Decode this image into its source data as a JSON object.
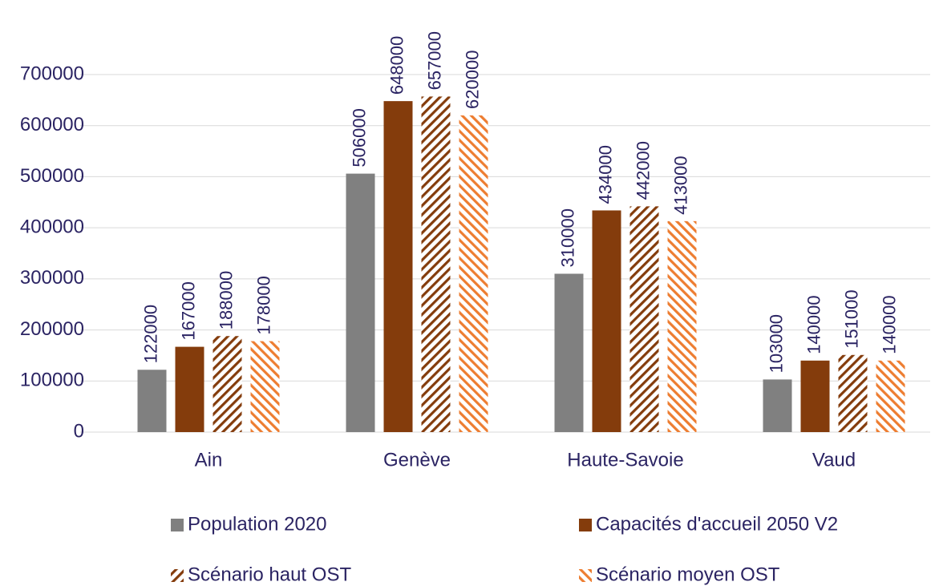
{
  "chart_data": {
    "type": "bar",
    "categories": [
      "Ain",
      "Genève",
      "Haute-Savoie",
      "Vaud"
    ],
    "series": [
      {
        "name": "Population 2020",
        "color": "#808080",
        "hatch": "none",
        "values": [
          122000,
          506000,
          310000,
          103000
        ]
      },
      {
        "name": "Capacités d'accueil 2050 V2",
        "color": "#843c0c",
        "hatch": "none",
        "values": [
          167000,
          648000,
          434000,
          140000
        ]
      },
      {
        "name": "Scénario haut OST",
        "color": "#843c0c",
        "hatch": "down",
        "values": [
          188000,
          657000,
          442000,
          151000
        ]
      },
      {
        "name": "Scénario moyen OST",
        "color": "#ed7d31",
        "hatch": "up",
        "values": [
          178000,
          620000,
          413000,
          140000
        ]
      }
    ],
    "ylim": [
      0,
      700000
    ],
    "yticks": [
      0,
      100000,
      200000,
      300000,
      400000,
      500000,
      600000,
      700000
    ],
    "grid": true,
    "legend": "bottom"
  }
}
